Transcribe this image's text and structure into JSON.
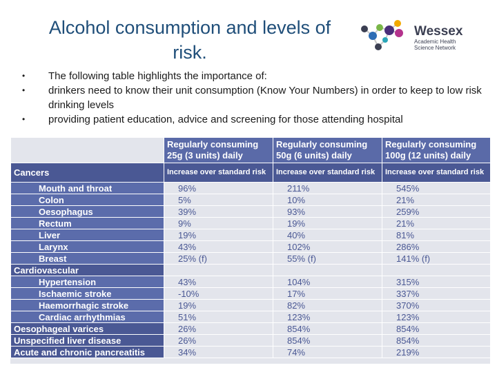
{
  "title": {
    "line1": "Alcohol consumption and levels of",
    "line2": "risk."
  },
  "logo": {
    "name": "Wessex",
    "line2": "Academic Health",
    "line3": "Science Network"
  },
  "bullets": [
    {
      "text": "The following table highlights the importance of:"
    },
    {
      "text": "drinkers need to know their unit consumption (Know Your Numbers) in order to keep to low risk drinking levels"
    },
    {
      "text": "providing patient education, advice and screening for those attending hospital"
    }
  ],
  "table": {
    "columns": [
      "Regularly consuming 25g (3 units) daily",
      "Regularly consuming 50g (6 units) daily",
      "Regularly consuming 100g (12 units) daily"
    ],
    "subheader_label": "Cancers",
    "subheader": "Increase over standard risk",
    "rows": [
      {
        "label": "Mouth and throat",
        "kind": "sub",
        "v": [
          "96%",
          "211%",
          "545%"
        ]
      },
      {
        "label": "Colon",
        "kind": "sub",
        "v": [
          "5%",
          "10%",
          "21%"
        ]
      },
      {
        "label": "Oesophagus",
        "kind": "sub",
        "v": [
          "39%",
          "93%",
          "259%"
        ]
      },
      {
        "label": "Rectum",
        "kind": "sub",
        "v": [
          "9%",
          "19%",
          "21%"
        ]
      },
      {
        "label": "Liver",
        "kind": "sub",
        "v": [
          "19%",
          "40%",
          "81%"
        ]
      },
      {
        "label": "Larynx",
        "kind": "sub",
        "v": [
          "43%",
          "102%",
          "286%"
        ]
      },
      {
        "label": "Breast",
        "kind": "sub",
        "v": [
          "25% (f)",
          "55% (f)",
          "141% (f)"
        ]
      },
      {
        "label": "Cardiovascular",
        "kind": "section",
        "v": [
          "",
          "",
          ""
        ]
      },
      {
        "label": "Hypertension",
        "kind": "sub",
        "v": [
          "43%",
          "104%",
          "315%"
        ]
      },
      {
        "label": "Ischaemic stroke",
        "kind": "sub",
        "v": [
          "-10%",
          "17%",
          "337%"
        ]
      },
      {
        "label": "Haemorrhagic stroke",
        "kind": "sub",
        "v": [
          "19%",
          "82%",
          "370%"
        ]
      },
      {
        "label": "Cardiac arrhythmias",
        "kind": "sub",
        "v": [
          "51%",
          "123%",
          "123%"
        ]
      },
      {
        "label": "Oesophageal varices",
        "kind": "top",
        "v": [
          "26%",
          "854%",
          "854%"
        ]
      },
      {
        "label": "Unspecified liver disease",
        "kind": "top",
        "v": [
          "26%",
          "854%",
          "854%"
        ]
      },
      {
        "label": "Acute and chronic pancreatitis",
        "kind": "top",
        "v": [
          "34%",
          "74%",
          "219%"
        ]
      }
    ]
  }
}
